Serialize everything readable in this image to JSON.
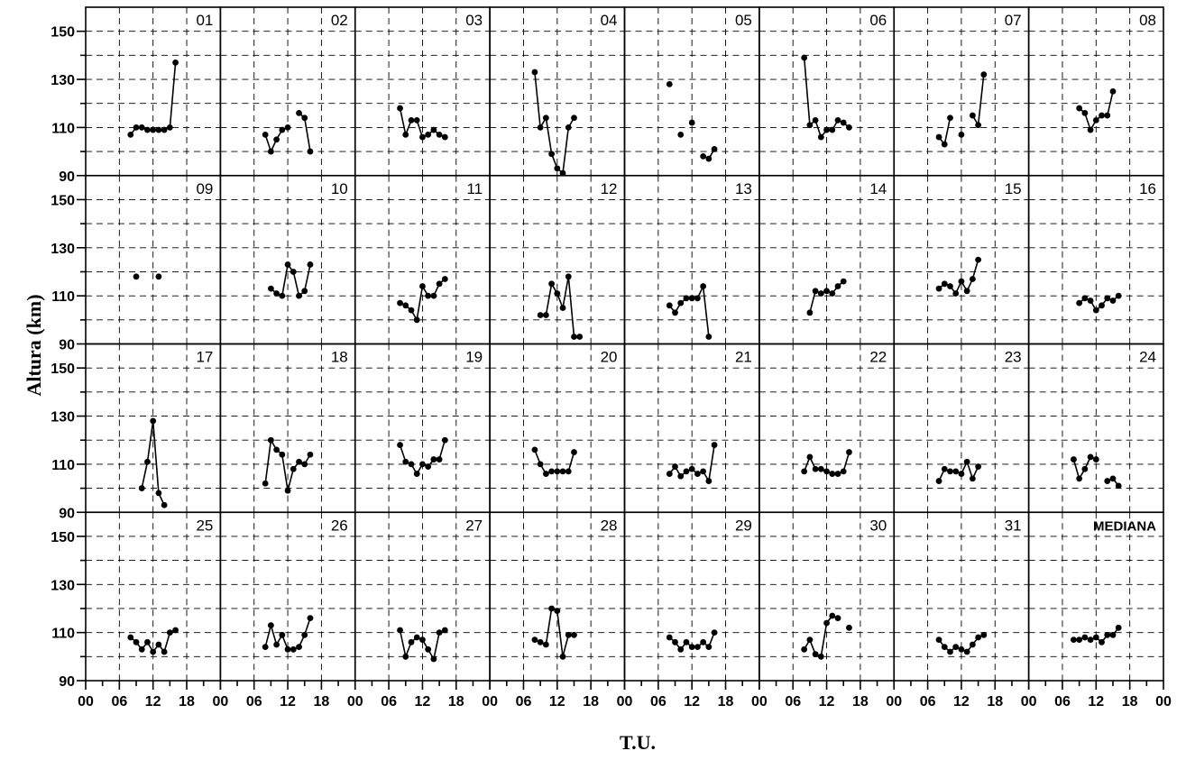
{
  "chart_data": {
    "type": "line",
    "ylabel": "Altura (km)",
    "xlabel": "T.U.",
    "ylim": [
      90,
      160
    ],
    "xlim": [
      0,
      24
    ],
    "yticks": [
      90,
      110,
      130,
      150
    ],
    "xtick_labels": [
      "00",
      "06",
      "12",
      "18"
    ],
    "last_xtick_label": "00",
    "grid": true,
    "panels": [
      {
        "label": "01",
        "points": [
          [
            8,
            107
          ],
          [
            9,
            110
          ],
          [
            10,
            110
          ],
          [
            11,
            109
          ],
          [
            12,
            109
          ],
          [
            13,
            109
          ],
          [
            14,
            109
          ],
          [
            15,
            110
          ],
          [
            16,
            137
          ]
        ]
      },
      {
        "label": "02",
        "points": [
          [
            8,
            107
          ],
          [
            9,
            100
          ],
          [
            10,
            105
          ],
          [
            11,
            109
          ],
          [
            12,
            110
          ],
          [
            null,
            null
          ],
          [
            14,
            116
          ],
          [
            15,
            114
          ],
          [
            16,
            100
          ]
        ]
      },
      {
        "label": "03",
        "points": [
          [
            8,
            118
          ],
          [
            9,
            107
          ],
          [
            10,
            113
          ],
          [
            11,
            113
          ],
          [
            12,
            106
          ],
          [
            13,
            107
          ],
          [
            14,
            109
          ],
          [
            15,
            107
          ],
          [
            16,
            106
          ]
        ]
      },
      {
        "label": "04",
        "points": [
          [
            8,
            133
          ],
          [
            9,
            110
          ],
          [
            10,
            114
          ],
          [
            11,
            99
          ],
          [
            12,
            93
          ],
          [
            13,
            91
          ],
          [
            14,
            110
          ],
          [
            15,
            114
          ]
        ]
      },
      {
        "label": "05",
        "points": [
          [
            8,
            128
          ],
          [
            null,
            null
          ],
          [
            10,
            107
          ],
          [
            null,
            null
          ],
          [
            12,
            112
          ],
          [
            null,
            null
          ],
          [
            14,
            98
          ],
          [
            15,
            97
          ],
          [
            16,
            101
          ]
        ]
      },
      {
        "label": "06",
        "points": [
          [
            8,
            139
          ],
          [
            9,
            111
          ],
          [
            10,
            113
          ],
          [
            11,
            106
          ],
          [
            12,
            109
          ],
          [
            13,
            109
          ],
          [
            14,
            113
          ],
          [
            15,
            112
          ],
          [
            16,
            110
          ]
        ]
      },
      {
        "label": "07",
        "points": [
          [
            8,
            106
          ],
          [
            9,
            103
          ],
          [
            10,
            114
          ],
          [
            null,
            null
          ],
          [
            12,
            107
          ],
          [
            null,
            null
          ],
          [
            14,
            115
          ],
          [
            15,
            111
          ],
          [
            16,
            132
          ]
        ]
      },
      {
        "label": "08",
        "points": [
          [
            9,
            118
          ],
          [
            10,
            116
          ],
          [
            11,
            109
          ],
          [
            12,
            113
          ],
          [
            13,
            115
          ],
          [
            14,
            115
          ],
          [
            15,
            125
          ]
        ]
      },
      {
        "label": "09",
        "points": [
          [
            9,
            118
          ],
          [
            null,
            null
          ],
          [
            13,
            118
          ]
        ]
      },
      {
        "label": "10",
        "points": [
          [
            9,
            113
          ],
          [
            10,
            111
          ],
          [
            11,
            110
          ],
          [
            12,
            123
          ],
          [
            13,
            120
          ],
          [
            14,
            110
          ],
          [
            15,
            112
          ],
          [
            16,
            123
          ]
        ]
      },
      {
        "label": "11",
        "points": [
          [
            8,
            107
          ],
          [
            9,
            106
          ],
          [
            10,
            104
          ],
          [
            11,
            100
          ],
          [
            12,
            114
          ],
          [
            13,
            110
          ],
          [
            14,
            110
          ],
          [
            15,
            115
          ],
          [
            16,
            117
          ]
        ]
      },
      {
        "label": "12",
        "points": [
          [
            9,
            102
          ],
          [
            10,
            102
          ],
          [
            11,
            115
          ],
          [
            12,
            111
          ],
          [
            13,
            105
          ],
          [
            14,
            118
          ],
          [
            15,
            93
          ],
          [
            16,
            93
          ]
        ]
      },
      {
        "label": "13",
        "points": [
          [
            8,
            106
          ],
          [
            9,
            103
          ],
          [
            10,
            107
          ],
          [
            11,
            109
          ],
          [
            12,
            109
          ],
          [
            13,
            109
          ],
          [
            14,
            114
          ],
          [
            15,
            93
          ]
        ]
      },
      {
        "label": "14",
        "points": [
          [
            9,
            103
          ],
          [
            10,
            112
          ],
          [
            11,
            111
          ],
          [
            12,
            112
          ],
          [
            13,
            111
          ],
          [
            14,
            114
          ],
          [
            15,
            116
          ]
        ]
      },
      {
        "label": "15",
        "points": [
          [
            8,
            113
          ],
          [
            9,
            115
          ],
          [
            10,
            114
          ],
          [
            11,
            111
          ],
          [
            12,
            116
          ],
          [
            13,
            112
          ],
          [
            14,
            117
          ],
          [
            15,
            125
          ]
        ]
      },
      {
        "label": "16",
        "points": [
          [
            9,
            107
          ],
          [
            10,
            109
          ],
          [
            11,
            108
          ],
          [
            12,
            104
          ],
          [
            13,
            106
          ],
          [
            14,
            109
          ],
          [
            15,
            108
          ],
          [
            16,
            110
          ]
        ]
      },
      {
        "label": "17",
        "points": [
          [
            10,
            100
          ],
          [
            11,
            111
          ],
          [
            12,
            128
          ],
          [
            13,
            98
          ],
          [
            14,
            93
          ]
        ]
      },
      {
        "label": "18",
        "points": [
          [
            8,
            102
          ],
          [
            9,
            120
          ],
          [
            10,
            116
          ],
          [
            11,
            114
          ],
          [
            12,
            99
          ],
          [
            13,
            108
          ],
          [
            14,
            111
          ],
          [
            15,
            110
          ],
          [
            16,
            114
          ]
        ]
      },
      {
        "label": "19",
        "points": [
          [
            8,
            118
          ],
          [
            9,
            111
          ],
          [
            10,
            110
          ],
          [
            11,
            106
          ],
          [
            12,
            110
          ],
          [
            13,
            109
          ],
          [
            14,
            112
          ],
          [
            15,
            112
          ],
          [
            16,
            120
          ]
        ]
      },
      {
        "label": "20",
        "points": [
          [
            8,
            116
          ],
          [
            9,
            110
          ],
          [
            10,
            106
          ],
          [
            11,
            107
          ],
          [
            12,
            107
          ],
          [
            13,
            107
          ],
          [
            14,
            107
          ],
          [
            15,
            115
          ]
        ]
      },
      {
        "label": "21",
        "points": [
          [
            8,
            106
          ],
          [
            9,
            109
          ],
          [
            10,
            105
          ],
          [
            11,
            107
          ],
          [
            12,
            108
          ],
          [
            13,
            106
          ],
          [
            14,
            107
          ],
          [
            15,
            103
          ],
          [
            16,
            118
          ]
        ]
      },
      {
        "label": "22",
        "points": [
          [
            8,
            107
          ],
          [
            9,
            113
          ],
          [
            10,
            108
          ],
          [
            11,
            108
          ],
          [
            12,
            107
          ],
          [
            13,
            106
          ],
          [
            14,
            106
          ],
          [
            15,
            107
          ],
          [
            16,
            115
          ]
        ]
      },
      {
        "label": "23",
        "points": [
          [
            8,
            103
          ],
          [
            9,
            108
          ],
          [
            10,
            107
          ],
          [
            11,
            107
          ],
          [
            12,
            106
          ],
          [
            13,
            111
          ],
          [
            14,
            104
          ],
          [
            15,
            109
          ]
        ]
      },
      {
        "label": "24",
        "points": [
          [
            8,
            112
          ],
          [
            9,
            104
          ],
          [
            10,
            108
          ],
          [
            11,
            113
          ],
          [
            12,
            112
          ],
          [
            null,
            null
          ],
          [
            14,
            103
          ],
          [
            15,
            104
          ],
          [
            16,
            101
          ]
        ]
      },
      {
        "label": "25",
        "points": [
          [
            8,
            108
          ],
          [
            9,
            106
          ],
          [
            10,
            103
          ],
          [
            11,
            106
          ],
          [
            12,
            102
          ],
          [
            13,
            105
          ],
          [
            14,
            102
          ],
          [
            15,
            110
          ],
          [
            16,
            111
          ]
        ]
      },
      {
        "label": "26",
        "points": [
          [
            8,
            104
          ],
          [
            9,
            113
          ],
          [
            10,
            105
          ],
          [
            11,
            109
          ],
          [
            12,
            103
          ],
          [
            13,
            103
          ],
          [
            14,
            104
          ],
          [
            15,
            109
          ],
          [
            16,
            116
          ]
        ]
      },
      {
        "label": "27",
        "points": [
          [
            8,
            111
          ],
          [
            9,
            100
          ],
          [
            10,
            106
          ],
          [
            11,
            108
          ],
          [
            12,
            107
          ],
          [
            13,
            103
          ],
          [
            14,
            99
          ],
          [
            15,
            110
          ],
          [
            16,
            111
          ]
        ]
      },
      {
        "label": "28",
        "points": [
          [
            8,
            107
          ],
          [
            9,
            106
          ],
          [
            10,
            105
          ],
          [
            11,
            120
          ],
          [
            12,
            119
          ],
          [
            13,
            100
          ],
          [
            14,
            109
          ],
          [
            15,
            109
          ]
        ]
      },
      {
        "label": "29",
        "points": [
          [
            8,
            108
          ],
          [
            9,
            106
          ],
          [
            10,
            103
          ],
          [
            11,
            106
          ],
          [
            12,
            104
          ],
          [
            13,
            104
          ],
          [
            14,
            106
          ],
          [
            15,
            104
          ],
          [
            16,
            110
          ]
        ]
      },
      {
        "label": "30",
        "points": [
          [
            8,
            103
          ],
          [
            9,
            107
          ],
          [
            10,
            101
          ],
          [
            11,
            100
          ],
          [
            12,
            114
          ],
          [
            13,
            117
          ],
          [
            14,
            116
          ],
          [
            null,
            null
          ],
          [
            16,
            112
          ]
        ]
      },
      {
        "label": "31",
        "points": [
          [
            8,
            107
          ],
          [
            9,
            104
          ],
          [
            10,
            102
          ],
          [
            11,
            104
          ],
          [
            12,
            103
          ],
          [
            13,
            102
          ],
          [
            14,
            105
          ],
          [
            15,
            108
          ],
          [
            16,
            109
          ]
        ]
      },
      {
        "label": "MEDIANA",
        "points": [
          [
            8,
            107
          ],
          [
            9,
            107
          ],
          [
            10,
            108
          ],
          [
            11,
            107
          ],
          [
            12,
            108
          ],
          [
            13,
            106
          ],
          [
            14,
            109
          ],
          [
            15,
            109
          ],
          [
            16,
            112
          ]
        ]
      }
    ]
  }
}
